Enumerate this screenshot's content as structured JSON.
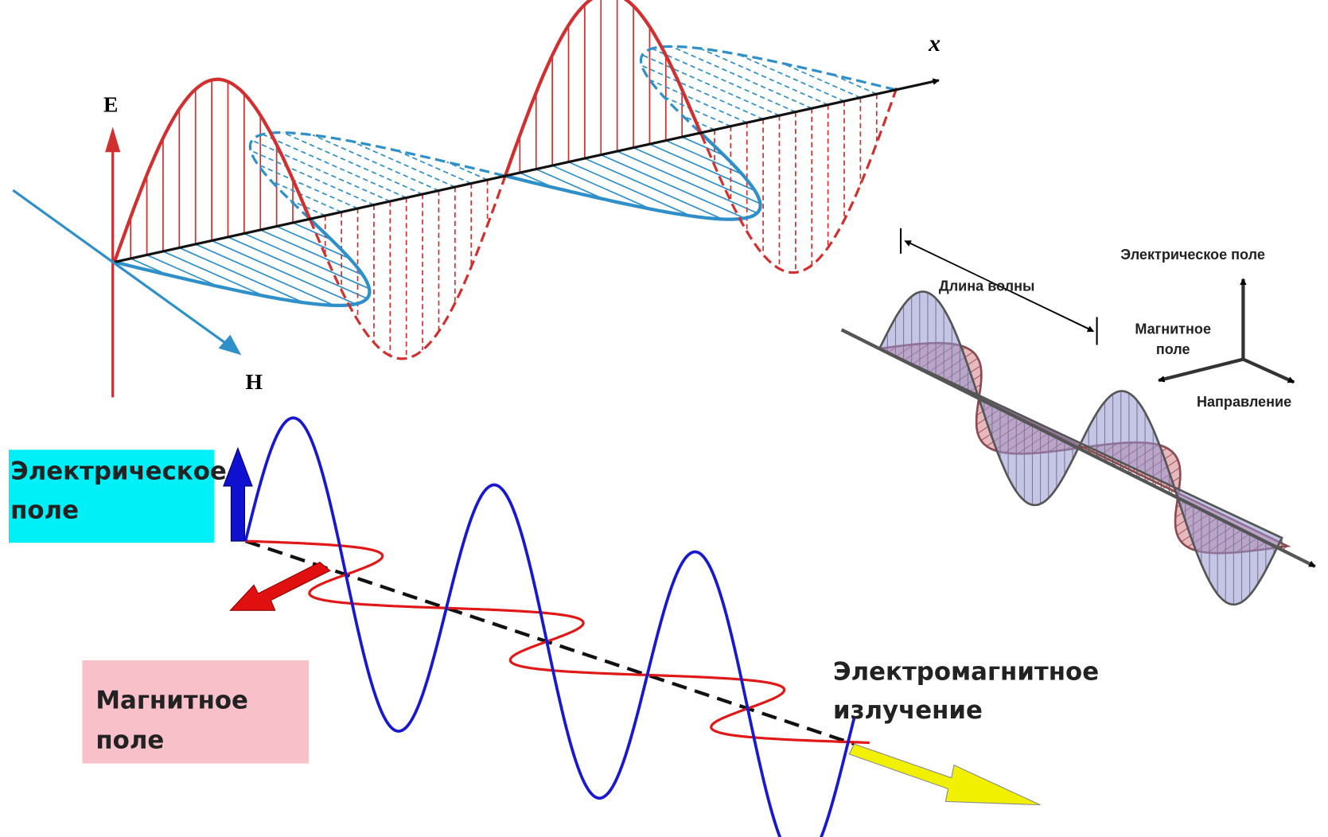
{
  "wave_3d": {
    "axis_label": "x",
    "electric_label": "E",
    "magnetic_label": "H"
  },
  "wave_small": {
    "wavelength": "Длина волны",
    "legend": {
      "electric": "Электрическое поле",
      "magnetic_lines": [
        "Магнитное",
        "поле"
      ],
      "direction": "Направление"
    }
  },
  "wave_flat": {
    "electric_lines": [
      "Электрическое",
      "поле"
    ],
    "magnetic_lines": [
      "Магнитное",
      "поле"
    ],
    "radiation_lines": [
      "Электромагнитное",
      "излучение"
    ]
  }
}
